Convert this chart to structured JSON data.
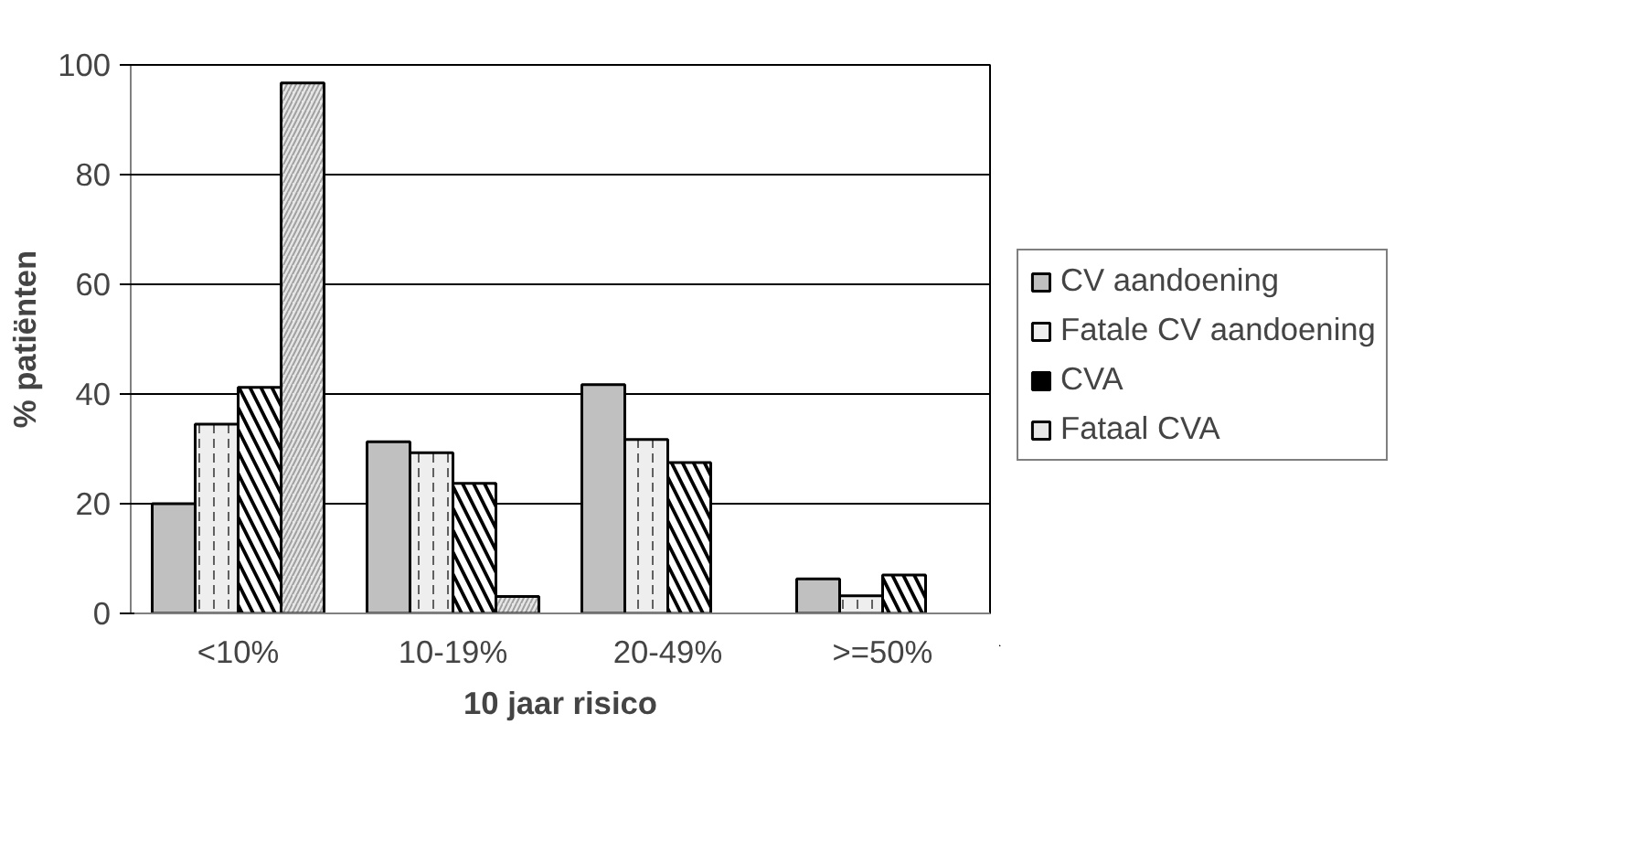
{
  "chart_data": {
    "type": "bar",
    "xlabel": "10 jaar risico",
    "ylabel": "% patiënten",
    "categories": [
      "<10%",
      "10-19%",
      "20-49%",
      ">=50%"
    ],
    "series": [
      {
        "name": "CV aandoening",
        "color": "#c0c0c0",
        "values": [
          20,
          31.3,
          41.7,
          6.3
        ]
      },
      {
        "name": "Fatale CV aandoening",
        "color": "#eeeeee",
        "values": [
          34.5,
          29.3,
          31.7,
          3.2
        ]
      },
      {
        "name": "CVA",
        "color": "#000000",
        "values": [
          41.2,
          23.7,
          27.5,
          7
        ]
      },
      {
        "name": "Fataal CVA",
        "color": "#e6e6e6",
        "values": [
          96.7,
          3.1,
          null,
          null
        ]
      }
    ],
    "ylim": [
      0,
      100
    ],
    "yticks": [
      0,
      20,
      40,
      60,
      80,
      100
    ],
    "grid": "y",
    "legend": "right"
  }
}
